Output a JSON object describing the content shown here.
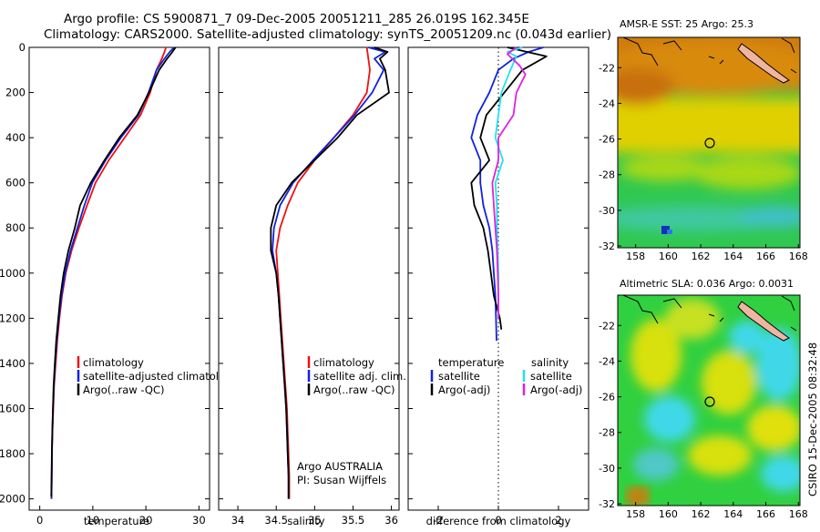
{
  "header": {
    "line1": "Argo profile: CS 5900871_7 09-Dec-2005 20051211_285 26.019S 162.345E",
    "line2": "Climatology: CARS2000. Satellite-adjusted climatology: synTS_20051209.nc (0.043d earlier)"
  },
  "footer": {
    "float_info_line1": "Argo AUSTRALIA",
    "float_info_line2": "PI: Susan Wijffels",
    "side_stamp": "CSIRO 15-Dec-2005 08:32:48"
  },
  "chart_data": [
    {
      "id": "temperature",
      "type": "line",
      "xlabel": "temperature",
      "xlim": [
        -2,
        32
      ],
      "ylim": [
        0,
        2050
      ],
      "y_reversed": true,
      "xticks": [
        0,
        10,
        20,
        30
      ],
      "yticks": [
        0,
        200,
        400,
        600,
        800,
        1000,
        1200,
        1400,
        1600,
        1800,
        2000
      ],
      "legend": [
        "climatology",
        "satellite-adjusted climatolog",
        "Argo(..raw -QC)"
      ],
      "series": [
        {
          "name": "climatology",
          "color": "#ee1111",
          "points": [
            [
              23.8,
              0
            ],
            [
              23.5,
              20
            ],
            [
              23.0,
              50
            ],
            [
              22.0,
              100
            ],
            [
              20.8,
              200
            ],
            [
              19.0,
              300
            ],
            [
              16.0,
              400
            ],
            [
              13.0,
              500
            ],
            [
              10.5,
              600
            ],
            [
              8.9,
              700
            ],
            [
              7.4,
              800
            ],
            [
              6.0,
              900
            ],
            [
              4.9,
              1000
            ],
            [
              4.2,
              1100
            ],
            [
              3.7,
              1200
            ],
            [
              3.3,
              1300
            ],
            [
              3.0,
              1400
            ],
            [
              2.7,
              1500
            ],
            [
              2.55,
              1600
            ],
            [
              2.4,
              1700
            ],
            [
              2.3,
              1800
            ],
            [
              2.25,
              1900
            ],
            [
              2.2,
              2000
            ]
          ]
        },
        {
          "name": "satellite-adjusted climatolog",
          "color": "#1122dd",
          "points": [
            [
              25.3,
              0
            ],
            [
              24.5,
              20
            ],
            [
              23.5,
              50
            ],
            [
              22.0,
              100
            ],
            [
              20.5,
              200
            ],
            [
              18.6,
              300
            ],
            [
              15.3,
              400
            ],
            [
              12.4,
              500
            ],
            [
              9.9,
              600
            ],
            [
              8.4,
              700
            ],
            [
              7.1,
              800
            ],
            [
              5.8,
              900
            ],
            [
              4.8,
              1000
            ],
            [
              4.1,
              1100
            ],
            [
              3.6,
              1200
            ],
            [
              3.2,
              1300
            ],
            [
              2.9,
              1400
            ],
            [
              2.65,
              1500
            ],
            [
              2.5,
              1600
            ],
            [
              2.38,
              1700
            ],
            [
              2.3,
              1800
            ],
            [
              2.25,
              1900
            ],
            [
              2.2,
              2000
            ]
          ]
        },
        {
          "name": "Argo(..raw -QC)",
          "color": "#000000",
          "points": [
            [
              25.6,
              0
            ],
            [
              25.0,
              20
            ],
            [
              24.0,
              50
            ],
            [
              22.5,
              100
            ],
            [
              20.6,
              200
            ],
            [
              18.4,
              300
            ],
            [
              15.0,
              400
            ],
            [
              12.2,
              500
            ],
            [
              9.6,
              600
            ],
            [
              7.6,
              700
            ],
            [
              6.6,
              800
            ],
            [
              5.4,
              900
            ],
            [
              4.5,
              1000
            ],
            [
              3.9,
              1100
            ],
            [
              3.5,
              1200
            ],
            [
              3.1,
              1300
            ],
            [
              2.85,
              1400
            ],
            [
              2.6,
              1500
            ],
            [
              2.48,
              1600
            ],
            [
              2.36,
              1700
            ],
            [
              2.28,
              1800
            ],
            [
              2.22,
              1900
            ],
            [
              2.18,
              1990
            ]
          ]
        }
      ]
    },
    {
      "id": "salinity",
      "type": "line",
      "xlabel": "salinity",
      "xlim": [
        33.75,
        36.1
      ],
      "ylim": [
        0,
        2050
      ],
      "y_reversed": true,
      "xticks": [
        34,
        34.5,
        35,
        35.5,
        36
      ],
      "legend": [
        "climatology",
        "satellite adj. clim.",
        "Argo(..raw -QC)"
      ],
      "series": [
        {
          "name": "climatology",
          "color": "#ee1111",
          "points": [
            [
              35.68,
              0
            ],
            [
              35.7,
              50
            ],
            [
              35.72,
              100
            ],
            [
              35.68,
              200
            ],
            [
              35.5,
              300
            ],
            [
              35.25,
              400
            ],
            [
              35.0,
              500
            ],
            [
              34.78,
              600
            ],
            [
              34.65,
              700
            ],
            [
              34.55,
              800
            ],
            [
              34.5,
              900
            ],
            [
              34.52,
              1000
            ],
            [
              34.54,
              1100
            ],
            [
              34.56,
              1200
            ],
            [
              34.58,
              1300
            ],
            [
              34.6,
              1400
            ],
            [
              34.62,
              1500
            ],
            [
              34.64,
              1600
            ],
            [
              34.65,
              1700
            ],
            [
              34.66,
              1800
            ],
            [
              34.67,
              1900
            ],
            [
              34.67,
              2000
            ]
          ]
        },
        {
          "name": "satellite adj. clim.",
          "color": "#1122dd",
          "points": [
            [
              35.7,
              0
            ],
            [
              35.92,
              20
            ],
            [
              35.78,
              50
            ],
            [
              35.9,
              100
            ],
            [
              35.75,
              200
            ],
            [
              35.52,
              300
            ],
            [
              35.25,
              400
            ],
            [
              34.98,
              500
            ],
            [
              34.72,
              600
            ],
            [
              34.55,
              700
            ],
            [
              34.47,
              800
            ],
            [
              34.45,
              900
            ],
            [
              34.5,
              1000
            ],
            [
              34.53,
              1100
            ],
            [
              34.55,
              1200
            ],
            [
              34.57,
              1300
            ],
            [
              34.59,
              1400
            ],
            [
              34.61,
              1500
            ],
            [
              34.63,
              1600
            ],
            [
              34.64,
              1700
            ],
            [
              34.65,
              1800
            ],
            [
              34.66,
              1900
            ],
            [
              34.66,
              2000
            ]
          ]
        },
        {
          "name": "Argo(..raw -QC)",
          "color": "#000000",
          "points": [
            [
              35.78,
              0
            ],
            [
              35.95,
              20
            ],
            [
              35.85,
              50
            ],
            [
              35.92,
              100
            ],
            [
              35.97,
              200
            ],
            [
              35.55,
              300
            ],
            [
              35.3,
              400
            ],
            [
              35.0,
              500
            ],
            [
              34.7,
              600
            ],
            [
              34.5,
              700
            ],
            [
              34.43,
              800
            ],
            [
              34.43,
              900
            ],
            [
              34.5,
              1000
            ],
            [
              34.53,
              1100
            ],
            [
              34.55,
              1200
            ],
            [
              34.57,
              1300
            ],
            [
              34.59,
              1400
            ],
            [
              34.61,
              1500
            ],
            [
              34.63,
              1600
            ],
            [
              34.64,
              1700
            ],
            [
              34.65,
              1800
            ],
            [
              34.66,
              1900
            ],
            [
              34.66,
              2000
            ]
          ]
        }
      ]
    },
    {
      "id": "difference",
      "type": "line",
      "xlabel": "difference from climatology",
      "xlim": [
        -3,
        3
      ],
      "ylim": [
        0,
        2050
      ],
      "y_reversed": true,
      "xticks": [
        -2,
        0,
        2
      ],
      "legend_temperature_header": "temperature",
      "legend_salinity_header": "salinity",
      "legend": [
        "satellite",
        "Argo(-adj)",
        "satellite",
        "Argo(-adj)"
      ],
      "series": [
        {
          "name": "temperature satellite",
          "color": "#1122dd",
          "points": [
            [
              1.5,
              0
            ],
            [
              1.0,
              20
            ],
            [
              0.5,
              50
            ],
            [
              0.0,
              100
            ],
            [
              -0.3,
              200
            ],
            [
              -0.7,
              300
            ],
            [
              -0.9,
              400
            ],
            [
              -0.6,
              500
            ],
            [
              -0.6,
              600
            ],
            [
              -0.5,
              700
            ],
            [
              -0.3,
              800
            ],
            [
              -0.2,
              900
            ],
            [
              -0.15,
              1000
            ],
            [
              -0.1,
              1100
            ],
            [
              -0.08,
              1200
            ],
            [
              -0.06,
              1300
            ]
          ]
        },
        {
          "name": "temperature Argo(-adj)",
          "color": "#000000",
          "points": [
            [
              0.3,
              0
            ],
            [
              1.6,
              40
            ],
            [
              0.8,
              100
            ],
            [
              0.2,
              200
            ],
            [
              -0.4,
              300
            ],
            [
              -0.6,
              400
            ],
            [
              -0.3,
              500
            ],
            [
              -0.9,
              600
            ],
            [
              -0.8,
              700
            ],
            [
              -0.5,
              800
            ],
            [
              -0.35,
              900
            ],
            [
              -0.25,
              1000
            ],
            [
              -0.15,
              1100
            ],
            [
              0.05,
              1200
            ],
            [
              0.1,
              1250
            ]
          ]
        },
        {
          "name": "salinity satellite",
          "color": "#22e0f0",
          "points": [
            [
              0.8,
              0
            ],
            [
              0.3,
              20
            ],
            [
              0.6,
              40
            ],
            [
              0.4,
              100
            ],
            [
              0.1,
              200
            ],
            [
              0.0,
              300
            ],
            [
              -0.1,
              400
            ],
            [
              0.15,
              500
            ],
            [
              -0.1,
              600
            ],
            [
              -0.05,
              700
            ],
            [
              -0.05,
              800
            ],
            [
              -0.02,
              900
            ],
            [
              0.0,
              1000
            ],
            [
              0.0,
              1100
            ],
            [
              0.0,
              1200
            ]
          ]
        },
        {
          "name": "salinity Argo(-adj)",
          "color": "#dd22dd",
          "points": [
            [
              0.6,
              0
            ],
            [
              0.3,
              30
            ],
            [
              0.7,
              80
            ],
            [
              0.9,
              120
            ],
            [
              0.6,
              200
            ],
            [
              0.5,
              300
            ],
            [
              0.0,
              400
            ],
            [
              0.0,
              500
            ],
            [
              -0.2,
              600
            ],
            [
              -0.15,
              700
            ],
            [
              -0.1,
              800
            ],
            [
              -0.05,
              900
            ],
            [
              -0.02,
              1000
            ],
            [
              0.0,
              1100
            ],
            [
              0.0,
              1200
            ]
          ]
        }
      ]
    }
  ],
  "maps": [
    {
      "id": "sst-map",
      "type": "heatmap",
      "title": "AMSR-E SST: 25 Argo: 25.3",
      "xlim": [
        156.9,
        168.1
      ],
      "ylim": [
        -32.1,
        -20.3
      ],
      "xticks": [
        158,
        160,
        162,
        164,
        166,
        168
      ],
      "yticks": [
        -22,
        -24,
        -26,
        -28,
        -30,
        -32
      ],
      "float_position": [
        162.345,
        -26.019
      ],
      "colors": {
        "warm": "#d07a10",
        "mid": "#e0d000",
        "cool": "#30c850",
        "cold": "#2a7ae0",
        "coldest": "#1030c0",
        "land": "#f0b4a0"
      }
    },
    {
      "id": "sla-map",
      "type": "heatmap",
      "title": "Altimetric SLA: 0.036 Argo: 0.0031",
      "xlim": [
        156.9,
        168.1
      ],
      "ylim": [
        -32.1,
        -20.3
      ],
      "xticks": [
        158,
        160,
        162,
        164,
        166,
        168
      ],
      "yticks": [
        -22,
        -24,
        -26,
        -28,
        -30,
        -32
      ],
      "float_position": [
        162.345,
        -26.019
      ],
      "colors": {
        "green": "#30d040",
        "yellow": "#d8e010",
        "cyan": "#40d8e8",
        "orange": "#d07a10",
        "land": "#f0b4a0"
      }
    }
  ]
}
